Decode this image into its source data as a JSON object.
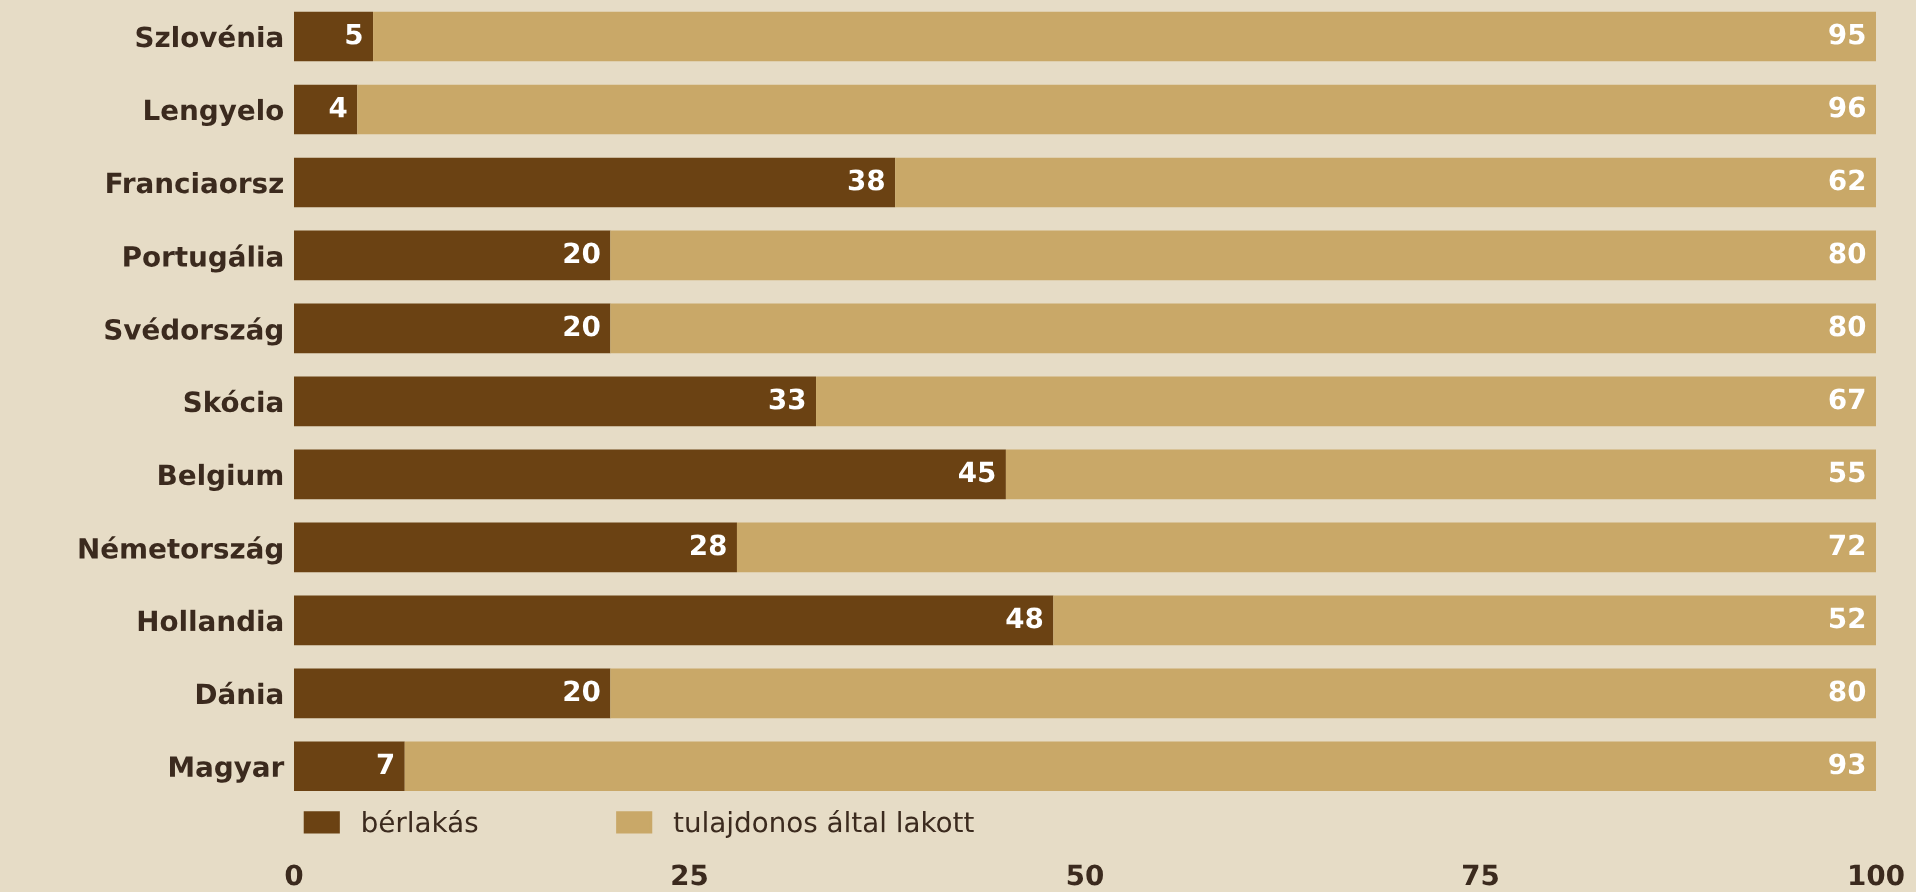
{
  "chart_data": {
    "type": "bar",
    "orientation": "horizontal",
    "stacked": true,
    "categories": [
      "Szlovénia",
      "Lengyelo",
      "Franciaorsz",
      "Portugália",
      "Svédország",
      "Skócia",
      "Belgium",
      "Németország",
      "Hollandia",
      "Dánia",
      "Magyar"
    ],
    "series": [
      {
        "name": "bérlakás",
        "color": "#6b4213",
        "values": [
          5,
          4,
          38,
          20,
          20,
          33,
          45,
          28,
          48,
          20,
          7
        ]
      },
      {
        "name": "tulajdonos által lakott",
        "color": "#c9a868",
        "values": [
          95,
          96,
          62,
          80,
          80,
          67,
          55,
          72,
          52,
          80,
          93
        ]
      }
    ],
    "xlim": [
      0,
      100
    ],
    "xticks": [
      0,
      25,
      50,
      75,
      100
    ],
    "data_labels": true,
    "legend": "bottom left",
    "grid": false
  }
}
